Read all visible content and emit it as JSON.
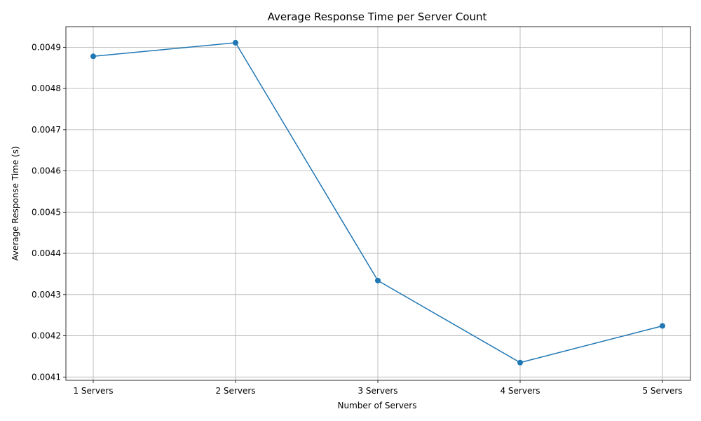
{
  "chart_data": {
    "type": "line",
    "title": "Average Response Time per Server Count",
    "xlabel": "Number of Servers",
    "ylabel": "Average Response Time (s)",
    "categories": [
      "1 Servers",
      "2 Servers",
      "3 Servers",
      "4 Servers",
      "5 Servers"
    ],
    "series": [
      {
        "values": [
          0.004878,
          0.004911,
          0.004334,
          0.004135,
          0.004224
        ],
        "color": "#1f77b4",
        "marker": "circle"
      }
    ],
    "ylim": [
      0.004092,
      0.00495
    ],
    "yticks": [
      0.0041,
      0.0042,
      0.0043,
      0.0044,
      0.0045,
      0.0046,
      0.0047,
      0.0048,
      0.0049
    ],
    "ytick_labels": [
      "0.0041",
      "0.0042",
      "0.0043",
      "0.0044",
      "0.0045",
      "0.0046",
      "0.0047",
      "0.0048",
      "0.0049"
    ],
    "grid": true,
    "legend": "none"
  }
}
